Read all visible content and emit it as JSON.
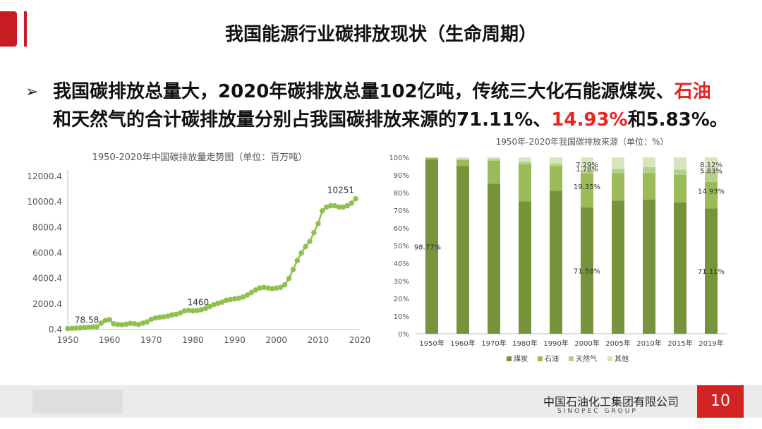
{
  "slide": {
    "title": "我国能源行业碳排放现状（生命周期）",
    "bullet_arrow": "➢",
    "bullet_line1_prefix": "我国碳排放总量大，2020年碳排放总量102亿吨，传统三大化石能源煤炭、",
    "bullet_line1_red": "石油",
    "bullet_line2_prefix": "和天然气的合计碳排放量分别占我国碳排放来源的71.11%、",
    "bullet_line2_red": "14.93%",
    "bullet_line2_suffix": "和5.83%。",
    "page_number": "10",
    "company_cn": "中国石油化工集团有限公司",
    "company_en": "SINOPEC GROUP",
    "accent_color": "#c81c24"
  },
  "chart_data": [
    {
      "type": "line",
      "title": "1950-2020年中国碳排放量走势图（单位：百万吨）",
      "x": [
        1950,
        1951,
        1952,
        1953,
        1954,
        1955,
        1956,
        1957,
        1958,
        1959,
        1960,
        1961,
        1962,
        1963,
        1964,
        1965,
        1966,
        1967,
        1968,
        1969,
        1970,
        1971,
        1972,
        1973,
        1974,
        1975,
        1976,
        1977,
        1978,
        1979,
        1980,
        1981,
        1982,
        1983,
        1984,
        1985,
        1986,
        1987,
        1988,
        1989,
        1990,
        1991,
        1992,
        1993,
        1994,
        1995,
        1996,
        1997,
        1998,
        1999,
        2000,
        2001,
        2002,
        2003,
        2004,
        2005,
        2006,
        2007,
        2008,
        2009,
        2010,
        2011,
        2012,
        2013,
        2014,
        2015,
        2016,
        2017,
        2018,
        2019
      ],
      "y": [
        79,
        95,
        110,
        130,
        150,
        180,
        210,
        220,
        500,
        700,
        780,
        450,
        400,
        380,
        420,
        480,
        450,
        400,
        500,
        600,
        800,
        900,
        950,
        1000,
        1050,
        1150,
        1200,
        1300,
        1460,
        1500,
        1460,
        1480,
        1550,
        1650,
        1800,
        1950,
        2050,
        2150,
        2300,
        2350,
        2400,
        2450,
        2550,
        2700,
        2900,
        3100,
        3250,
        3300,
        3250,
        3200,
        3250,
        3300,
        3500,
        4000,
        4700,
        5400,
        6000,
        6500,
        6900,
        7600,
        8300,
        9300,
        9600,
        9700,
        9700,
        9600,
        9600,
        9700,
        9900,
        10251
      ],
      "ylim": [
        0.4,
        12000.4
      ],
      "yticks": [
        "12000.4",
        "10000.4",
        "8000.4",
        "6000.4",
        "4000.4",
        "2000.4",
        "0.4"
      ],
      "xticks": [
        "1950",
        "1960",
        "1970",
        "1980",
        "1990",
        "2000",
        "2010",
        "2020"
      ],
      "annotations": [
        "78.58",
        "1460",
        "10251"
      ],
      "color": "#92c050"
    },
    {
      "type": "bar",
      "stacked": true,
      "title": "1950年-2020年我国碳排放来源（单位：%）",
      "categories": [
        "1950年",
        "1960年",
        "1970年",
        "1980年",
        "1990年",
        "2000年",
        "2005年",
        "2010年",
        "2015年",
        "2019年"
      ],
      "series": [
        {
          "name": "煤炭",
          "color": "#77933c",
          "values": [
            98.77,
            95,
            85,
            75,
            81,
            71.58,
            75.5,
            76,
            74.5,
            71.11
          ]
        },
        {
          "name": "石油",
          "color": "#9bbb59",
          "values": [
            1,
            3.5,
            13,
            21,
            14,
            19.35,
            15.5,
            15,
            15.5,
            14.93
          ]
        },
        {
          "name": "天然气",
          "color": "#b5d08d",
          "values": [
            0.13,
            0.5,
            1,
            1.5,
            1.5,
            1.78,
            2.5,
            3.5,
            3,
            5.83
          ]
        },
        {
          "name": "其他",
          "color": "#d7e4bd",
          "values": [
            0.1,
            1,
            1,
            2.5,
            3.5,
            7.29,
            6.5,
            5.5,
            7,
            8.12
          ]
        }
      ],
      "yticks": [
        "100%",
        "90%",
        "80%",
        "70%",
        "60%",
        "50%",
        "40%",
        "30%",
        "20%",
        "10%",
        "0%"
      ],
      "data_labels": {
        "1950年": [
          "98.77%"
        ],
        "2000年": [
          "71.58%",
          "19.35%",
          "1.78%",
          "7.29%"
        ],
        "2019年": [
          "71.11%",
          "14.93%",
          "5.83%",
          "8.12%"
        ]
      },
      "ylim": [
        0,
        100
      ],
      "legend_position": "bottom"
    }
  ]
}
